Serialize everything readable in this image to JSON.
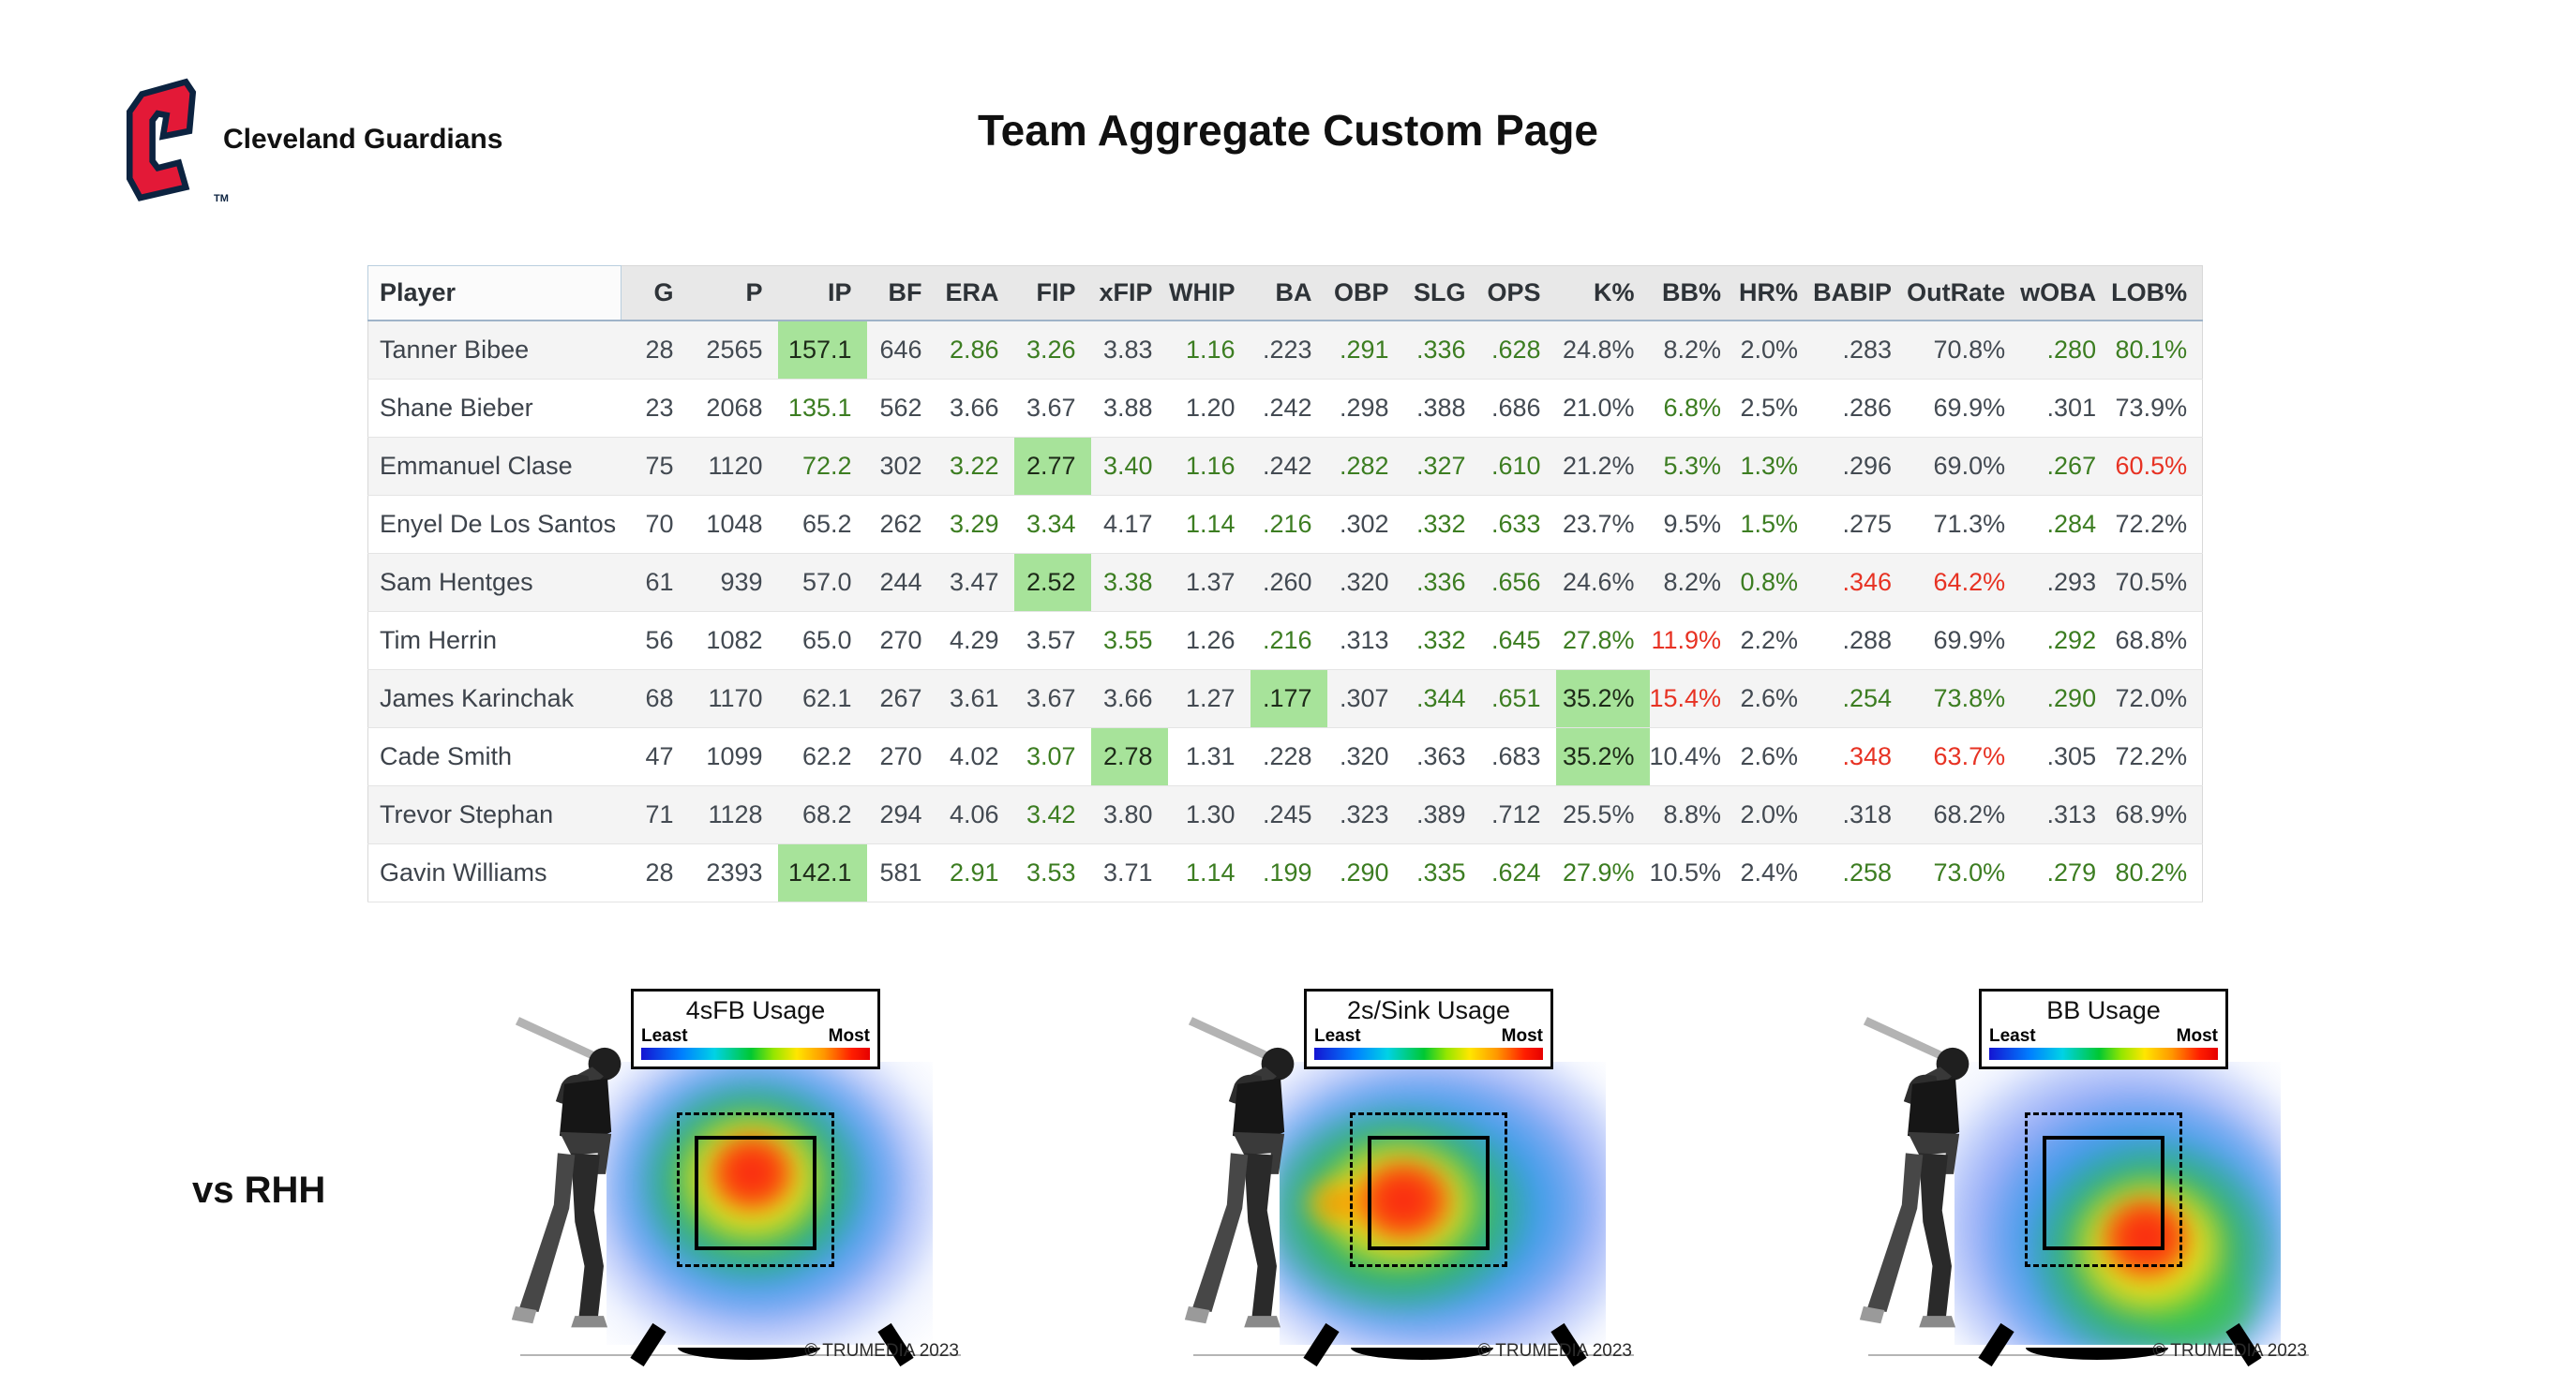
{
  "header": {
    "team_name": "Cleveland Guardians",
    "page_title": "Team Aggregate Custom Page",
    "logo_tm": "TM"
  },
  "colors": {
    "green_text": "#3c7d21",
    "red_text": "#e73223",
    "green_cell_bg": "#a7e39a",
    "row_stripe": "#f4f4f4",
    "header_bg": "#e8e8e8",
    "logo_red": "#e31937",
    "logo_navy": "#0c2340"
  },
  "table": {
    "columns": [
      "Player",
      "G",
      "P",
      "IP",
      "BF",
      "ERA",
      "FIP",
      "xFIP",
      "WHIP",
      "BA",
      "OBP",
      "SLG",
      "OPS",
      "K%",
      "BB%",
      "HR%",
      "BABIP",
      "OutRate",
      "wOBA",
      "LOB%"
    ],
    "style_legend": {
      "g": "green-text",
      "r": "red-text",
      "G": "green-background",
      "": "default"
    },
    "rows": [
      {
        "player": "Tanner Bibee",
        "stats": [
          "28",
          "2565",
          "157.1",
          "646",
          "2.86",
          "3.26",
          "3.83",
          "1.16",
          ".223",
          ".291",
          ".336",
          ".628",
          "24.8%",
          "8.2%",
          "2.0%",
          ".283",
          "70.8%",
          ".280",
          "80.1%"
        ],
        "styles": [
          "",
          "",
          "G",
          "",
          "g",
          "g",
          "",
          "g",
          "",
          "g",
          "g",
          "g",
          "",
          "",
          "",
          "",
          "",
          "g",
          "g"
        ]
      },
      {
        "player": "Shane Bieber",
        "stats": [
          "23",
          "2068",
          "135.1",
          "562",
          "3.66",
          "3.67",
          "3.88",
          "1.20",
          ".242",
          ".298",
          ".388",
          ".686",
          "21.0%",
          "6.8%",
          "2.5%",
          ".286",
          "69.9%",
          ".301",
          "73.9%"
        ],
        "styles": [
          "",
          "",
          "g",
          "",
          "",
          "",
          "",
          "",
          "",
          "",
          "",
          "",
          "",
          "g",
          "",
          "",
          "",
          "",
          ""
        ]
      },
      {
        "player": "Emmanuel Clase",
        "stats": [
          "75",
          "1120",
          "72.2",
          "302",
          "3.22",
          "2.77",
          "3.40",
          "1.16",
          ".242",
          ".282",
          ".327",
          ".610",
          "21.2%",
          "5.3%",
          "1.3%",
          ".296",
          "69.0%",
          ".267",
          "60.5%"
        ],
        "styles": [
          "",
          "",
          "g",
          "",
          "g",
          "G",
          "g",
          "g",
          "",
          "g",
          "g",
          "g",
          "",
          "g",
          "g",
          "",
          "",
          "g",
          "r"
        ]
      },
      {
        "player": "Enyel De Los Santos",
        "stats": [
          "70",
          "1048",
          "65.2",
          "262",
          "3.29",
          "3.34",
          "4.17",
          "1.14",
          ".216",
          ".302",
          ".332",
          ".633",
          "23.7%",
          "9.5%",
          "1.5%",
          ".275",
          "71.3%",
          ".284",
          "72.2%"
        ],
        "styles": [
          "",
          "",
          "",
          "",
          "g",
          "g",
          "",
          "g",
          "g",
          "",
          "g",
          "g",
          "",
          "",
          "g",
          "",
          "",
          "g",
          ""
        ]
      },
      {
        "player": "Sam Hentges",
        "stats": [
          "61",
          "939",
          "57.0",
          "244",
          "3.47",
          "2.52",
          "3.38",
          "1.37",
          ".260",
          ".320",
          ".336",
          ".656",
          "24.6%",
          "8.2%",
          "0.8%",
          ".346",
          "64.2%",
          ".293",
          "70.5%"
        ],
        "styles": [
          "",
          "",
          "",
          "",
          "",
          "G",
          "g",
          "",
          "",
          "",
          "g",
          "g",
          "",
          "",
          "g",
          "r",
          "r",
          "",
          ""
        ]
      },
      {
        "player": "Tim Herrin",
        "stats": [
          "56",
          "1082",
          "65.0",
          "270",
          "4.29",
          "3.57",
          "3.55",
          "1.26",
          ".216",
          ".313",
          ".332",
          ".645",
          "27.8%",
          "11.9%",
          "2.2%",
          ".288",
          "69.9%",
          ".292",
          "68.8%"
        ],
        "styles": [
          "",
          "",
          "",
          "",
          "",
          "",
          "g",
          "",
          "g",
          "",
          "g",
          "g",
          "g",
          "r",
          "",
          "",
          "",
          "g",
          ""
        ]
      },
      {
        "player": "James Karinchak",
        "stats": [
          "68",
          "1170",
          "62.1",
          "267",
          "3.61",
          "3.67",
          "3.66",
          "1.27",
          ".177",
          ".307",
          ".344",
          ".651",
          "35.2%",
          "15.4%",
          "2.6%",
          ".254",
          "73.8%",
          ".290",
          "72.0%"
        ],
        "styles": [
          "",
          "",
          "",
          "",
          "",
          "",
          "",
          "",
          "G",
          "",
          "g",
          "g",
          "G",
          "r",
          "",
          "g",
          "g",
          "g",
          ""
        ]
      },
      {
        "player": "Cade Smith",
        "stats": [
          "47",
          "1099",
          "62.2",
          "270",
          "4.02",
          "3.07",
          "2.78",
          "1.31",
          ".228",
          ".320",
          ".363",
          ".683",
          "35.2%",
          "10.4%",
          "2.6%",
          ".348",
          "63.7%",
          ".305",
          "72.2%"
        ],
        "styles": [
          "",
          "",
          "",
          "",
          "",
          "g",
          "G",
          "",
          "",
          "",
          "",
          "",
          "G",
          "",
          "",
          "r",
          "r",
          "",
          ""
        ]
      },
      {
        "player": "Trevor Stephan",
        "stats": [
          "71",
          "1128",
          "68.2",
          "294",
          "4.06",
          "3.42",
          "3.80",
          "1.30",
          ".245",
          ".323",
          ".389",
          ".712",
          "25.5%",
          "8.8%",
          "2.0%",
          ".318",
          "68.2%",
          ".313",
          "68.9%"
        ],
        "styles": [
          "",
          "",
          "",
          "",
          "",
          "g",
          "",
          "",
          "",
          "",
          "",
          "",
          "",
          "",
          "",
          "",
          "",
          "",
          ""
        ]
      },
      {
        "player": "Gavin Williams",
        "stats": [
          "28",
          "2393",
          "142.1",
          "581",
          "2.91",
          "3.53",
          "3.71",
          "1.14",
          ".199",
          ".290",
          ".335",
          ".624",
          "27.9%",
          "10.5%",
          "2.4%",
          ".258",
          "73.0%",
          ".279",
          "80.2%"
        ],
        "styles": [
          "",
          "",
          "G",
          "",
          "g",
          "g",
          "",
          "g",
          "g",
          "g",
          "g",
          "g",
          "g",
          "",
          "",
          "g",
          "g",
          "g",
          "g"
        ]
      }
    ]
  },
  "vs_rhh": {
    "label": "vs RHH",
    "heatmaps": [
      {
        "title": "4sFB Usage",
        "legend_left": "Least",
        "legend_right": "Most",
        "watermark": "© TRUMEDIA 2023",
        "hotspot": "middle, upper-third of zone"
      },
      {
        "title": "2s/Sink Usage",
        "legend_left": "Least",
        "legend_right": "Most",
        "watermark": "© TRUMEDIA 2023",
        "hotspot": "middle-in, spilling inside off the plate"
      },
      {
        "title": "BB Usage",
        "legend_left": "Least",
        "legend_right": "Most",
        "watermark": "© TRUMEDIA 2023",
        "hotspot": "down-and-away, low outside corner"
      }
    ]
  }
}
